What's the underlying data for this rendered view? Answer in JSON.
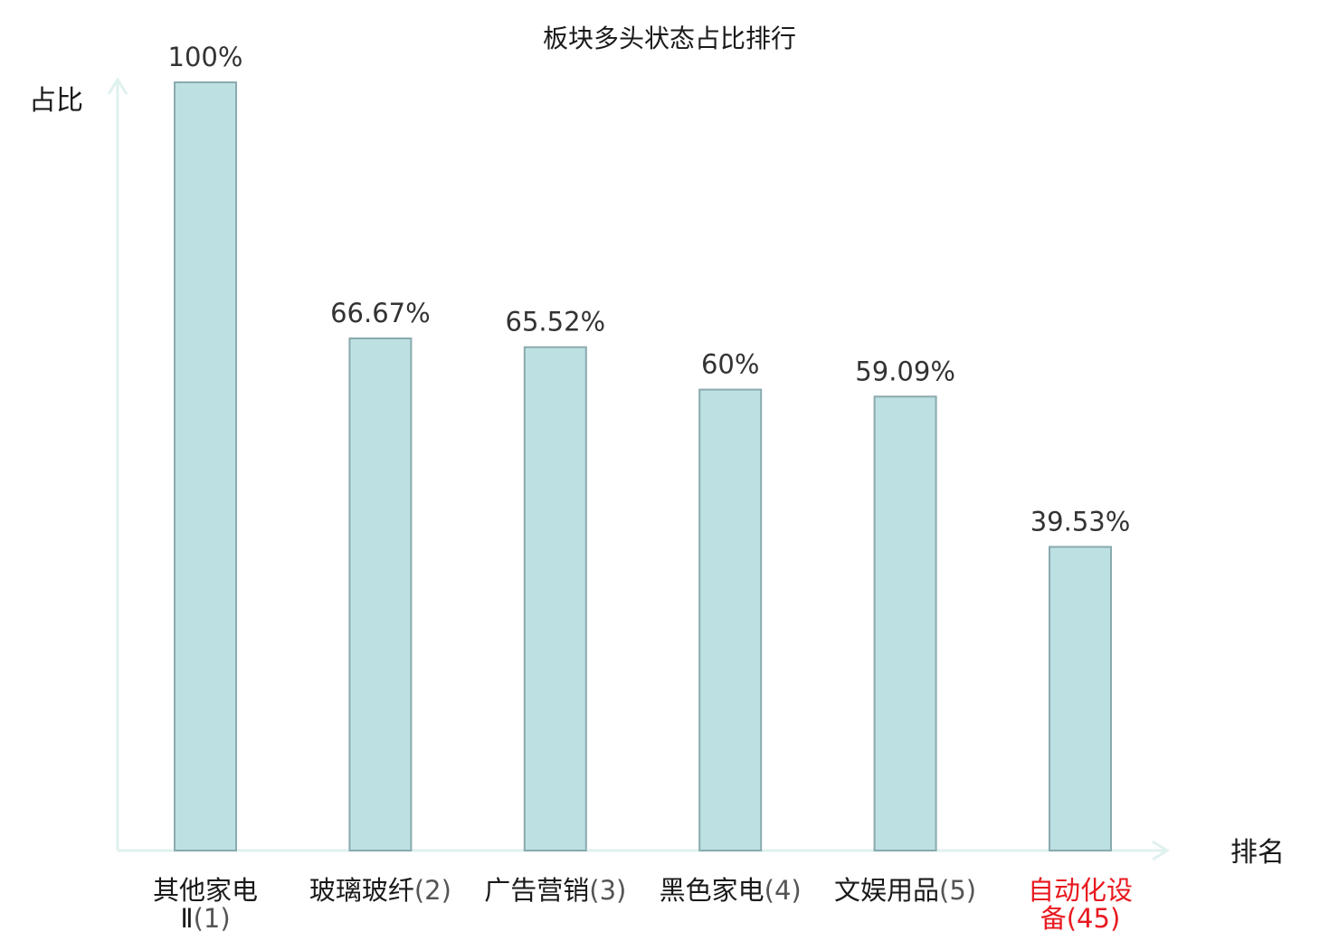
{
  "chart_data": {
    "type": "bar",
    "title": "板块多头状态占比排行",
    "ylabel": "占比",
    "xlabel": "排名",
    "ylim": [
      0,
      100
    ],
    "grid": false,
    "categories": [
      {
        "name": "其他家电",
        "name_line2": "Ⅱ",
        "rank": "(1)",
        "highlight": false
      },
      {
        "name": "玻璃玻纤",
        "name_line2": "",
        "rank": "(2)",
        "highlight": false
      },
      {
        "name": "广告营销",
        "name_line2": "",
        "rank": "(3)",
        "highlight": false
      },
      {
        "name": "黑色家电",
        "name_line2": "",
        "rank": "(4)",
        "highlight": false
      },
      {
        "name": "文娱用品",
        "name_line2": "",
        "rank": "(5)",
        "highlight": false
      },
      {
        "name": "自动化设",
        "name_line2": "备",
        "rank": "(45)",
        "highlight": true
      }
    ],
    "values": [
      100,
      66.67,
      65.52,
      60,
      59.09,
      39.53
    ],
    "value_labels": [
      "100%",
      "66.67%",
      "65.52%",
      "60%",
      "59.09%",
      "39.53%"
    ],
    "colors": {
      "bar_fill": "#bde0e3",
      "bar_stroke": "#8aaaae",
      "axis": "#dff1ef",
      "highlight_text": "#e8191f",
      "normal_text": "#1a1a1a"
    }
  }
}
